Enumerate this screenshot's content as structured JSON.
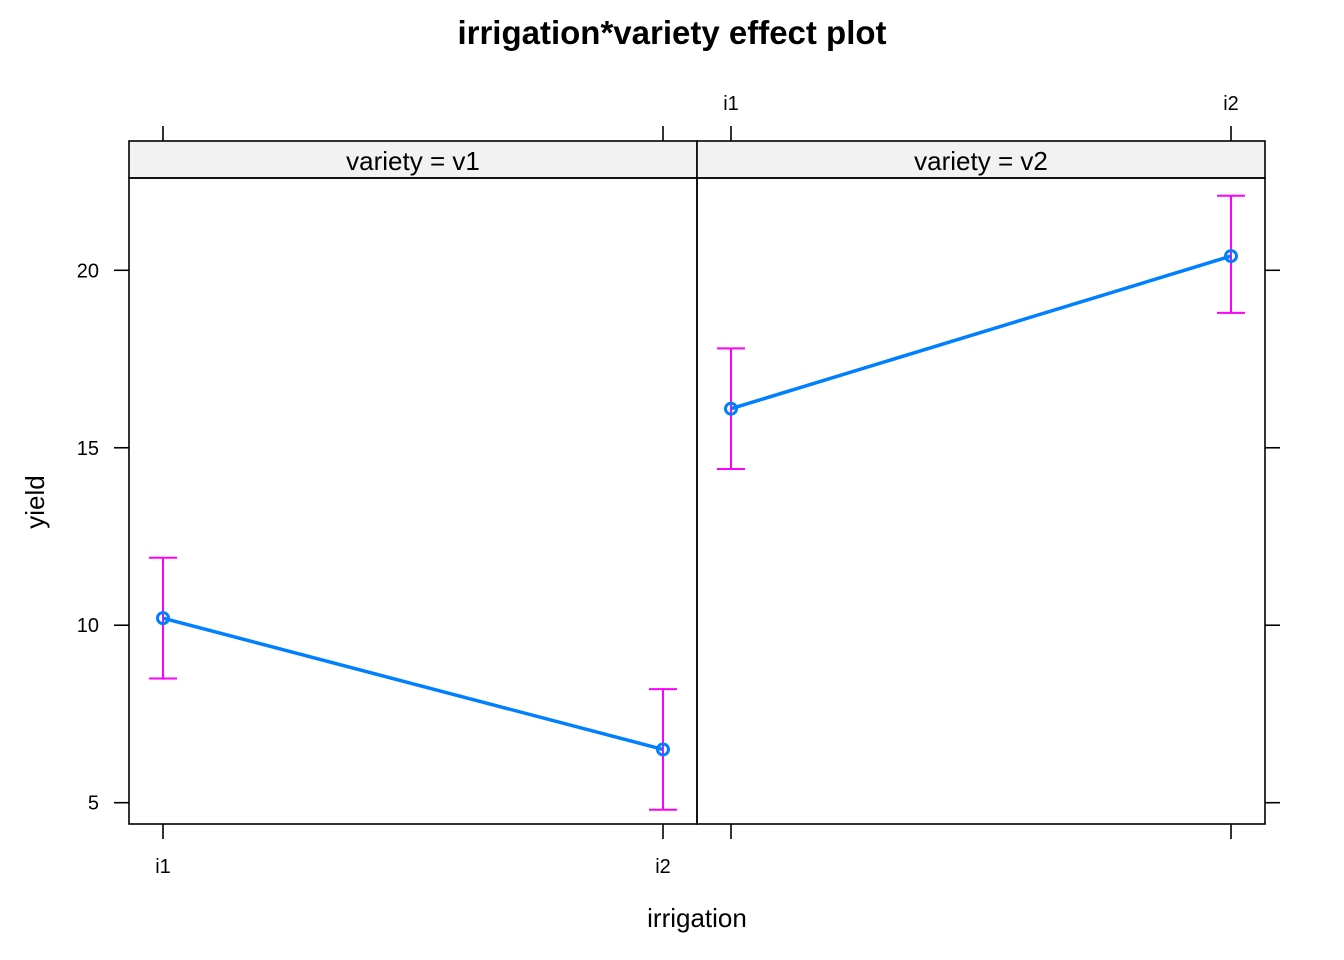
{
  "chart_data": {
    "type": "line",
    "title": "irrigation*variety effect plot",
    "xlabel": "irrigation",
    "ylabel": "yield",
    "x_categories": [
      "i1",
      "i2"
    ],
    "ylim": [
      4.4,
      22.6
    ],
    "y_ticks": [
      5,
      10,
      15,
      20
    ],
    "panels": [
      {
        "strip": "variety = v1",
        "points": [
          {
            "x": "i1",
            "y": 10.2,
            "lower": 8.5,
            "upper": 11.9
          },
          {
            "x": "i2",
            "y": 6.5,
            "lower": 4.8,
            "upper": 8.2
          }
        ]
      },
      {
        "strip": "variety = v2",
        "points": [
          {
            "x": "i1",
            "y": 16.1,
            "lower": 14.4,
            "upper": 17.8
          },
          {
            "x": "i2",
            "y": 20.4,
            "lower": 18.8,
            "upper": 22.1
          }
        ]
      }
    ],
    "colors": {
      "line": "#0080ff",
      "errorbar": "#ff00ff",
      "strip_bg": "#f2f2f2"
    }
  }
}
